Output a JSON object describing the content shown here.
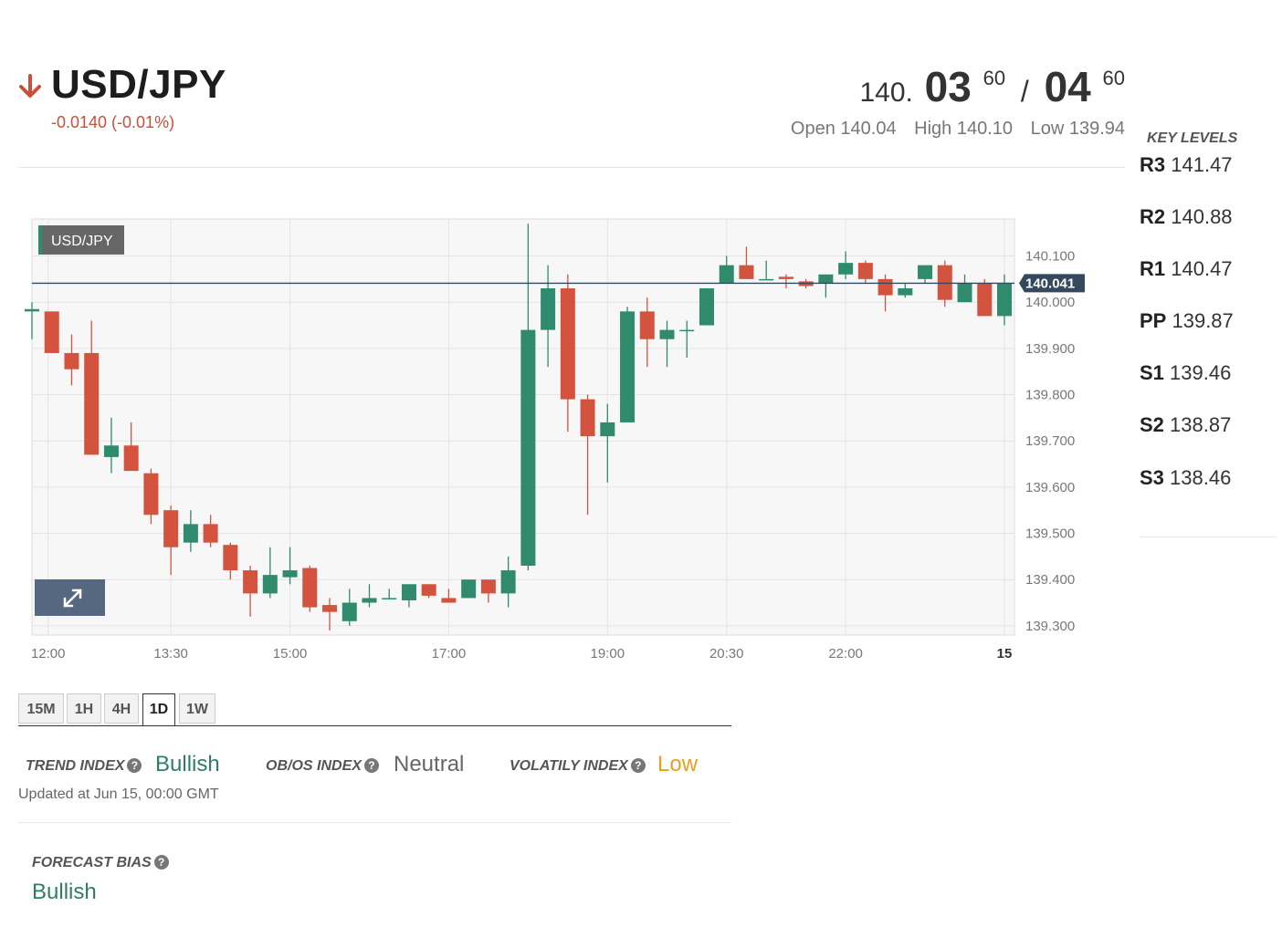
{
  "header": {
    "pair": "USD/JPY",
    "change": "-0.0140 (-0.01%)",
    "bid_prefix": "140.",
    "bid_big": "03",
    "bid_pip": "60",
    "separator": "/",
    "ask_big": "04",
    "ask_pip": "60",
    "open": "Open 140.04",
    "high": "High 140.10",
    "low": "Low 139.94",
    "down_color": "#c9503c"
  },
  "key_levels": {
    "title": "KEY LEVELS",
    "levels": [
      {
        "name": "R3",
        "value": "141.47"
      },
      {
        "name": "R2",
        "value": "140.88"
      },
      {
        "name": "R1",
        "value": "140.47"
      },
      {
        "name": "PP",
        "value": "139.87"
      },
      {
        "name": "S1",
        "value": "139.46"
      },
      {
        "name": "S2",
        "value": "138.87"
      },
      {
        "name": "S3",
        "value": "138.46"
      }
    ]
  },
  "chart_data": {
    "type": "candlestick",
    "title": "USD/JPY",
    "x_ticks": [
      "12:00",
      "13:30",
      "15:00",
      "17:00",
      "19:00",
      "20:30",
      "22:00",
      "15"
    ],
    "y_ticks": [
      "140.100",
      "140.000",
      "139.900",
      "139.800",
      "139.700",
      "139.600",
      "139.500",
      "139.400",
      "139.300"
    ],
    "ylim": [
      139.28,
      140.18
    ],
    "current_price": 140.041,
    "current_price_label": "140.041",
    "up_color": "#2f8a6e",
    "down_color": "#d4533f",
    "candles": [
      {
        "o": 139.98,
        "h": 140.0,
        "l": 139.92,
        "c": 139.985
      },
      {
        "o": 139.98,
        "h": 139.98,
        "l": 139.89,
        "c": 139.89
      },
      {
        "o": 139.89,
        "h": 139.93,
        "l": 139.82,
        "c": 139.855
      },
      {
        "o": 139.89,
        "h": 139.96,
        "l": 139.67,
        "c": 139.67
      },
      {
        "o": 139.665,
        "h": 139.75,
        "l": 139.63,
        "c": 139.69
      },
      {
        "o": 139.69,
        "h": 139.74,
        "l": 139.64,
        "c": 139.635
      },
      {
        "o": 139.63,
        "h": 139.64,
        "l": 139.52,
        "c": 139.54
      },
      {
        "o": 139.55,
        "h": 139.56,
        "l": 139.41,
        "c": 139.47
      },
      {
        "o": 139.48,
        "h": 139.55,
        "l": 139.46,
        "c": 139.52
      },
      {
        "o": 139.52,
        "h": 139.54,
        "l": 139.47,
        "c": 139.48
      },
      {
        "o": 139.475,
        "h": 139.48,
        "l": 139.4,
        "c": 139.42
      },
      {
        "o": 139.42,
        "h": 139.43,
        "l": 139.32,
        "c": 139.37
      },
      {
        "o": 139.37,
        "h": 139.47,
        "l": 139.36,
        "c": 139.41
      },
      {
        "o": 139.405,
        "h": 139.47,
        "l": 139.39,
        "c": 139.42
      },
      {
        "o": 139.425,
        "h": 139.43,
        "l": 139.33,
        "c": 139.34
      },
      {
        "o": 139.345,
        "h": 139.36,
        "l": 139.29,
        "c": 139.33
      },
      {
        "o": 139.31,
        "h": 139.38,
        "l": 139.3,
        "c": 139.35
      },
      {
        "o": 139.35,
        "h": 139.39,
        "l": 139.34,
        "c": 139.36
      },
      {
        "o": 139.36,
        "h": 139.38,
        "l": 139.36,
        "c": 139.36
      },
      {
        "o": 139.355,
        "h": 139.39,
        "l": 139.34,
        "c": 139.39
      },
      {
        "o": 139.39,
        "h": 139.39,
        "l": 139.36,
        "c": 139.365
      },
      {
        "o": 139.36,
        "h": 139.38,
        "l": 139.35,
        "c": 139.35
      },
      {
        "o": 139.36,
        "h": 139.4,
        "l": 139.36,
        "c": 139.4
      },
      {
        "o": 139.4,
        "h": 139.4,
        "l": 139.35,
        "c": 139.37
      },
      {
        "o": 139.37,
        "h": 139.45,
        "l": 139.34,
        "c": 139.42
      },
      {
        "o": 139.43,
        "h": 140.17,
        "l": 139.42,
        "c": 139.94
      },
      {
        "o": 139.94,
        "h": 140.08,
        "l": 139.86,
        "c": 140.03
      },
      {
        "o": 140.03,
        "h": 140.06,
        "l": 139.72,
        "c": 139.79
      },
      {
        "o": 139.79,
        "h": 139.8,
        "l": 139.54,
        "c": 139.71
      },
      {
        "o": 139.71,
        "h": 139.78,
        "l": 139.61,
        "c": 139.74
      },
      {
        "o": 139.74,
        "h": 139.99,
        "l": 139.74,
        "c": 139.98
      },
      {
        "o": 139.98,
        "h": 140.01,
        "l": 139.86,
        "c": 139.92
      },
      {
        "o": 139.92,
        "h": 139.96,
        "l": 139.86,
        "c": 139.94
      },
      {
        "o": 139.94,
        "h": 139.96,
        "l": 139.88,
        "c": 139.94
      },
      {
        "o": 139.95,
        "h": 140.03,
        "l": 139.95,
        "c": 140.03
      },
      {
        "o": 140.04,
        "h": 140.1,
        "l": 140.04,
        "c": 140.08
      },
      {
        "o": 140.08,
        "h": 140.12,
        "l": 140.05,
        "c": 140.05
      },
      {
        "o": 140.05,
        "h": 140.09,
        "l": 140.05,
        "c": 140.05
      },
      {
        "o": 140.055,
        "h": 140.06,
        "l": 140.03,
        "c": 140.05
      },
      {
        "o": 140.045,
        "h": 140.05,
        "l": 140.03,
        "c": 140.035
      },
      {
        "o": 140.04,
        "h": 140.06,
        "l": 140.01,
        "c": 140.06
      },
      {
        "o": 140.06,
        "h": 140.11,
        "l": 140.05,
        "c": 140.085
      },
      {
        "o": 140.085,
        "h": 140.09,
        "l": 140.04,
        "c": 140.05
      },
      {
        "o": 140.05,
        "h": 140.06,
        "l": 139.98,
        "c": 140.015
      },
      {
        "o": 140.015,
        "h": 140.04,
        "l": 140.01,
        "c": 140.03
      },
      {
        "o": 140.05,
        "h": 140.08,
        "l": 140.04,
        "c": 140.08
      },
      {
        "o": 140.08,
        "h": 140.09,
        "l": 139.99,
        "c": 140.005
      },
      {
        "o": 140.0,
        "h": 140.06,
        "l": 140.0,
        "c": 140.04
      },
      {
        "o": 140.04,
        "h": 140.05,
        "l": 139.97,
        "c": 139.97
      },
      {
        "o": 139.97,
        "h": 140.06,
        "l": 139.95,
        "c": 140.04
      }
    ]
  },
  "timeframes": [
    "15M",
    "1H",
    "4H",
    "1D",
    "1W"
  ],
  "active_timeframe": "1D",
  "indices": {
    "trend_label": "TREND INDEX",
    "trend_value": "Bullish",
    "obos_label": "OB/OS INDEX",
    "obos_value": "Neutral",
    "volatility_label": "VOLATILY INDEX",
    "volatility_value": "Low",
    "updated": "Updated at Jun 15, 00:00 GMT"
  },
  "forecast": {
    "label": "FORECAST BIAS",
    "value": "Bullish"
  }
}
